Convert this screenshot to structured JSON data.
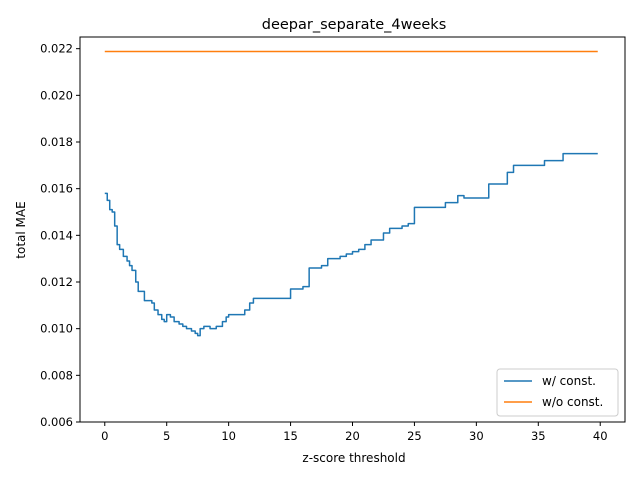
{
  "chart_data": {
    "type": "line",
    "title": "deepar_separate_4weeks",
    "xlabel": "z-score threshold",
    "ylabel": "total MAE",
    "xlim": [
      -2,
      42
    ],
    "ylim": [
      0.006,
      0.0225
    ],
    "xticks": [
      0,
      5,
      10,
      15,
      20,
      25,
      30,
      35,
      40
    ],
    "xtick_labels": [
      "0",
      "5",
      "10",
      "15",
      "20",
      "25",
      "30",
      "35",
      "40"
    ],
    "yticks": [
      0.006,
      0.008,
      0.01,
      0.012,
      0.014,
      0.016,
      0.018,
      0.02,
      0.022
    ],
    "ytick_labels": [
      "0.006",
      "0.008",
      "0.010",
      "0.012",
      "0.014",
      "0.016",
      "0.018",
      "0.020",
      "0.022"
    ],
    "grid": false,
    "legend_position": "lower-right",
    "series": [
      {
        "name": "w/ const.",
        "color": "#1f77b4",
        "x": [
          0,
          0.2,
          0.4,
          0.6,
          0.8,
          1.0,
          1.2,
          1.5,
          1.8,
          2.0,
          2.2,
          2.5,
          2.7,
          3.0,
          3.2,
          3.5,
          3.8,
          4.0,
          4.3,
          4.6,
          4.8,
          5.0,
          5.3,
          5.6,
          6.0,
          6.3,
          6.6,
          7.0,
          7.3,
          7.5,
          7.7,
          8.0,
          8.5,
          9.0,
          9.5,
          9.8,
          10.0,
          10.5,
          11.0,
          11.3,
          11.7,
          12.0,
          12.5,
          13.0,
          13.5,
          14.0,
          14.5,
          15.0,
          15.5,
          16.0,
          16.3,
          16.5,
          17.0,
          17.5,
          18.0,
          18.5,
          19.0,
          19.5,
          20.0,
          20.5,
          21.0,
          21.5,
          22.0,
          22.5,
          23.0,
          23.5,
          24.0,
          24.5,
          25.0,
          25.5,
          26.0,
          26.5,
          27.0,
          27.5,
          28.0,
          28.5,
          29.0,
          29.5,
          30.0,
          30.5,
          31.0,
          31.5,
          32.0,
          32.5,
          33.0,
          33.5,
          34.0,
          34.5,
          35.0,
          35.5,
          36.0,
          36.5,
          37.0,
          37.5,
          38.0,
          38.5,
          39.0,
          39.5,
          39.8
        ],
        "values": [
          0.0158,
          0.0155,
          0.0151,
          0.015,
          0.0144,
          0.0136,
          0.0134,
          0.0131,
          0.0129,
          0.0127,
          0.0125,
          0.012,
          0.0116,
          0.0116,
          0.0112,
          0.0112,
          0.0111,
          0.0108,
          0.0106,
          0.0104,
          0.0103,
          0.0106,
          0.0105,
          0.0103,
          0.0102,
          0.0101,
          0.01,
          0.0099,
          0.0098,
          0.0097,
          0.01,
          0.0101,
          0.01,
          0.0101,
          0.0103,
          0.0105,
          0.0106,
          0.0106,
          0.0106,
          0.0108,
          0.0111,
          0.0113,
          0.0113,
          0.0113,
          0.0113,
          0.0113,
          0.0113,
          0.0117,
          0.0117,
          0.0118,
          0.0118,
          0.0126,
          0.0126,
          0.0127,
          0.013,
          0.013,
          0.0131,
          0.0132,
          0.0133,
          0.0134,
          0.0136,
          0.0138,
          0.0138,
          0.0141,
          0.0143,
          0.0143,
          0.0144,
          0.0145,
          0.0152,
          0.0152,
          0.0152,
          0.0152,
          0.0152,
          0.0154,
          0.0154,
          0.0157,
          0.0156,
          0.0156,
          0.0156,
          0.0156,
          0.0162,
          0.0162,
          0.0162,
          0.0167,
          0.017,
          0.017,
          0.017,
          0.017,
          0.017,
          0.0172,
          0.0172,
          0.0172,
          0.0175,
          0.0175,
          0.0175,
          0.0175,
          0.0175,
          0.0175,
          0.0175
        ]
      },
      {
        "name": "w/o const.",
        "color": "#ff7f0e",
        "x": [
          0,
          39.8
        ],
        "values": [
          0.02188,
          0.02188
        ]
      }
    ]
  }
}
